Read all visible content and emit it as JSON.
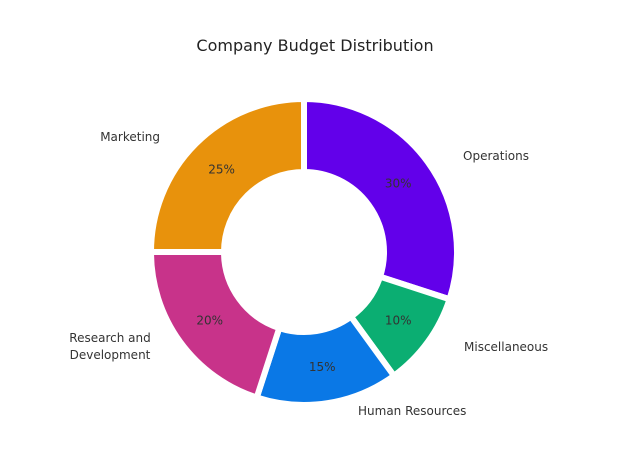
{
  "chart_data": {
    "type": "pie",
    "variant": "donut",
    "title": "Company Budget Distribution",
    "start_angle_deg": 0,
    "direction": "clockwise",
    "slices": [
      {
        "label": "Operations",
        "value": 30,
        "value_label": "30%",
        "color": "#6200EA"
      },
      {
        "label": "Miscellaneous",
        "value": 10,
        "value_label": "10%",
        "color": "#0BAE72"
      },
      {
        "label": "Human Resources",
        "value": 15,
        "value_label": "15%",
        "color": "#0A78E6"
      },
      {
        "label": "Research and Development",
        "value": 20,
        "value_label": "20%",
        "color": "#C8338A"
      },
      {
        "label": "Marketing",
        "value": 25,
        "value_label": "25%",
        "color": "#E8920C"
      }
    ]
  }
}
